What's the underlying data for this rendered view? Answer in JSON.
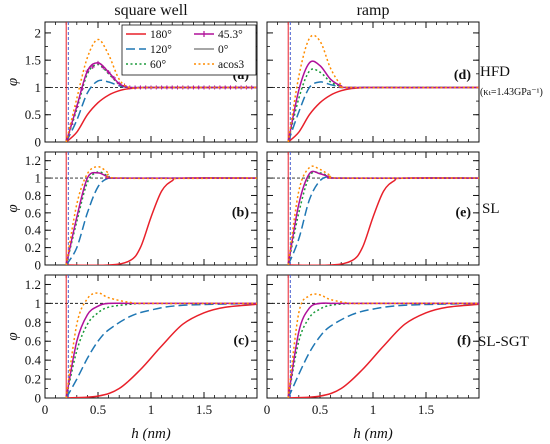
{
  "chart_data": {
    "type": "line",
    "column_headers": [
      "square well",
      "ramp"
    ],
    "row_labels": [
      {
        "label": "HFD",
        "sublabel": "(κₜ=1.43GPa⁻¹)"
      },
      {
        "label": "SL",
        "sublabel": ""
      },
      {
        "label": "SL-SGT",
        "sublabel": ""
      }
    ],
    "panel_labels": [
      "(a)",
      "(b)",
      "(c)",
      "(d)",
      "(e)",
      "(f)"
    ],
    "xlabel": "h (nm)",
    "ylabel": "φ",
    "xlim": [
      0,
      2
    ],
    "x_ticks": [
      0,
      0.5,
      1,
      1.5
    ],
    "row_ylims": [
      [
        0,
        2.2
      ],
      [
        0,
        1.3
      ],
      [
        0,
        1.3
      ]
    ],
    "row_yticks": [
      [
        0,
        0.5,
        1,
        1.5,
        2
      ],
      [
        0,
        0.2,
        0.4,
        0.6,
        0.8,
        1,
        1.2
      ],
      [
        0,
        0.2,
        0.4,
        0.6,
        0.8,
        1,
        1.2
      ]
    ],
    "reference_lines": {
      "y_dashed": 1,
      "x_vertical_red": 0.2,
      "x_vertical_blue": 0.22
    },
    "legend_position": "top-right of panel (a)",
    "series": [
      {
        "name": "180°",
        "color": "#e8202a",
        "dash": "solid"
      },
      {
        "name": "120°",
        "color": "#1f77b4",
        "dash": "longdash"
      },
      {
        "name": "60°",
        "color": "#1a9a3a",
        "dash": "dotted"
      },
      {
        "name": "45.3°",
        "color": "#b0109a",
        "dash": "solid-marker"
      },
      {
        "name": "0°",
        "color": "#888888",
        "dash": "solid"
      },
      {
        "name": "acos3",
        "color": "#ff8c00",
        "dash": "dotted"
      }
    ],
    "panels": [
      {
        "id": "a",
        "row": 0,
        "col": 0,
        "curves": [
          {
            "series": "180°",
            "x": [
              0.2,
              0.3,
              0.4,
              0.5,
              0.6,
              0.7,
              0.8,
              0.9,
              1.0,
              1.5,
              2.0
            ],
            "y": [
              0,
              0.18,
              0.5,
              0.72,
              0.86,
              0.94,
              0.98,
              0.995,
              1,
              1,
              1
            ]
          },
          {
            "series": "120°",
            "x": [
              0.2,
              0.3,
              0.4,
              0.5,
              0.6,
              0.7,
              0.8,
              1.0,
              2.0
            ],
            "y": [
              0,
              0.4,
              0.9,
              1.12,
              1.1,
              1.03,
              1.0,
              1,
              1
            ]
          },
          {
            "series": "60°",
            "x": [
              0.2,
              0.3,
              0.4,
              0.5,
              0.6,
              0.7,
              0.8,
              1.0,
              2.0
            ],
            "y": [
              0,
              0.6,
              1.25,
              1.42,
              1.25,
              1.06,
              1.0,
              1,
              1
            ]
          },
          {
            "series": "45.3°",
            "x": [
              0.2,
              0.3,
              0.4,
              0.5,
              0.6,
              0.7,
              0.8,
              1.0,
              2.0
            ],
            "y": [
              0,
              0.65,
              1.3,
              1.45,
              1.28,
              1.07,
              1.0,
              1,
              1
            ]
          },
          {
            "series": "acos3",
            "x": [
              0.2,
              0.3,
              0.4,
              0.5,
              0.6,
              0.7,
              0.8,
              1.0,
              2.0
            ],
            "y": [
              0,
              0.8,
              1.55,
              1.88,
              1.6,
              1.15,
              1.0,
              1,
              1
            ]
          }
        ]
      },
      {
        "id": "b",
        "row": 1,
        "col": 0,
        "curves": [
          {
            "series": "180°",
            "x": [
              0.2,
              0.6,
              0.8,
              0.9,
              1.0,
              1.1,
              1.2,
              1.3,
              2.0
            ],
            "y": [
              0,
              0,
              0.05,
              0.2,
              0.55,
              0.85,
              0.97,
              1,
              1
            ]
          },
          {
            "series": "120°",
            "x": [
              0.2,
              0.3,
              0.4,
              0.5,
              0.6,
              0.7,
              2.0
            ],
            "y": [
              0,
              0.2,
              0.6,
              0.9,
              1.0,
              1.0,
              1
            ]
          },
          {
            "series": "60°",
            "x": [
              0.2,
              0.3,
              0.4,
              0.5,
              0.6,
              0.7,
              2.0
            ],
            "y": [
              0,
              0.5,
              0.95,
              1.07,
              1.02,
              1.0,
              1
            ]
          },
          {
            "series": "45.3°",
            "x": [
              0.2,
              0.3,
              0.4,
              0.5,
              0.6,
              0.7,
              2.0
            ],
            "y": [
              0,
              0.55,
              1.0,
              1.06,
              1.01,
              1.0,
              1
            ]
          },
          {
            "series": "acos3",
            "x": [
              0.2,
              0.3,
              0.4,
              0.5,
              0.6,
              0.7,
              2.0
            ],
            "y": [
              0,
              0.7,
              1.05,
              1.13,
              1.06,
              1.0,
              1
            ]
          }
        ]
      },
      {
        "id": "c",
        "row": 2,
        "col": 0,
        "curves": [
          {
            "series": "180°",
            "x": [
              0.2,
              0.5,
              0.7,
              0.9,
              1.1,
              1.3,
              1.5,
              1.7,
              2.0
            ],
            "y": [
              0,
              0.02,
              0.1,
              0.3,
              0.55,
              0.78,
              0.9,
              0.96,
              0.99
            ]
          },
          {
            "series": "120°",
            "x": [
              0.2,
              0.3,
              0.4,
              0.5,
              0.6,
              0.8,
              1.0,
              1.3,
              2.0
            ],
            "y": [
              0,
              0.2,
              0.42,
              0.6,
              0.72,
              0.86,
              0.93,
              0.98,
              1
            ]
          },
          {
            "series": "60°",
            "x": [
              0.2,
              0.3,
              0.4,
              0.5,
              0.6,
              0.8,
              1.0,
              2.0
            ],
            "y": [
              0,
              0.5,
              0.78,
              0.9,
              0.96,
              0.99,
              1,
              1
            ]
          },
          {
            "series": "45.3°",
            "x": [
              0.2,
              0.3,
              0.4,
              0.5,
              0.6,
              0.8,
              1.0,
              2.0
            ],
            "y": [
              0,
              0.6,
              0.88,
              0.97,
              1.0,
              1.0,
              1,
              1
            ]
          },
          {
            "series": "acos3",
            "x": [
              0.2,
              0.3,
              0.4,
              0.5,
              0.6,
              0.8,
              1.0,
              2.0
            ],
            "y": [
              0,
              0.78,
              1.05,
              1.11,
              1.06,
              1.01,
              1,
              1
            ]
          }
        ]
      },
      {
        "id": "d",
        "row": 0,
        "col": 1,
        "curves": [
          {
            "series": "180°",
            "x": [
              0.2,
              0.3,
              0.4,
              0.5,
              0.6,
              0.7,
              0.8,
              0.9,
              1.0,
              2.0
            ],
            "y": [
              0,
              0.18,
              0.5,
              0.72,
              0.86,
              0.94,
              0.98,
              0.995,
              1,
              1
            ]
          },
          {
            "series": "120°",
            "x": [
              0.2,
              0.3,
              0.4,
              0.5,
              0.6,
              0.7,
              0.8,
              2.0
            ],
            "y": [
              0,
              0.55,
              1.0,
              1.1,
              1.05,
              1.01,
              1,
              1
            ]
          },
          {
            "series": "60°",
            "x": [
              0.2,
              0.3,
              0.4,
              0.5,
              0.6,
              0.7,
              0.8,
              2.0
            ],
            "y": [
              0,
              0.8,
              1.3,
              1.28,
              1.1,
              1.02,
              1,
              1
            ]
          },
          {
            "series": "45.3°",
            "x": [
              0.2,
              0.3,
              0.4,
              0.5,
              0.6,
              0.7,
              0.8,
              2.0
            ],
            "y": [
              0,
              0.95,
              1.45,
              1.4,
              1.15,
              1.03,
              1,
              1
            ]
          },
          {
            "series": "acos3",
            "x": [
              0.2,
              0.3,
              0.4,
              0.5,
              0.6,
              0.7,
              0.8,
              2.0
            ],
            "y": [
              0,
              1.2,
              1.9,
              1.85,
              1.35,
              1.05,
              1,
              1
            ]
          }
        ]
      },
      {
        "id": "e",
        "row": 1,
        "col": 1,
        "curves": [
          {
            "series": "180°",
            "x": [
              0.2,
              0.6,
              0.8,
              0.9,
              1.0,
              1.1,
              1.2,
              1.3,
              2.0
            ],
            "y": [
              0,
              0,
              0.05,
              0.2,
              0.55,
              0.85,
              0.97,
              1,
              1
            ]
          },
          {
            "series": "120°",
            "x": [
              0.2,
              0.3,
              0.4,
              0.5,
              0.6,
              0.7,
              2.0
            ],
            "y": [
              0,
              0.3,
              0.75,
              0.97,
              1.02,
              1.0,
              1
            ]
          },
          {
            "series": "60°",
            "x": [
              0.2,
              0.3,
              0.4,
              0.5,
              0.6,
              0.7,
              2.0
            ],
            "y": [
              0,
              0.6,
              1.02,
              1.06,
              1.01,
              1.0,
              1
            ]
          },
          {
            "series": "45.3°",
            "x": [
              0.2,
              0.3,
              0.4,
              0.5,
              0.6,
              0.7,
              2.0
            ],
            "y": [
              0,
              0.7,
              1.05,
              1.05,
              1.01,
              1.0,
              1
            ]
          },
          {
            "series": "acos3",
            "x": [
              0.2,
              0.3,
              0.4,
              0.5,
              0.6,
              0.7,
              2.0
            ],
            "y": [
              0,
              0.85,
              1.12,
              1.1,
              1.03,
              1.0,
              1
            ]
          }
        ]
      },
      {
        "id": "f",
        "row": 2,
        "col": 1,
        "curves": [
          {
            "series": "180°",
            "x": [
              0.2,
              0.5,
              0.7,
              0.9,
              1.1,
              1.3,
              1.5,
              1.7,
              2.0
            ],
            "y": [
              0,
              0.02,
              0.1,
              0.3,
              0.55,
              0.78,
              0.9,
              0.96,
              0.99
            ]
          },
          {
            "series": "120°",
            "x": [
              0.2,
              0.3,
              0.4,
              0.5,
              0.6,
              0.8,
              1.0,
              1.3,
              2.0
            ],
            "y": [
              0,
              0.25,
              0.48,
              0.65,
              0.76,
              0.88,
              0.94,
              0.98,
              1
            ]
          },
          {
            "series": "60°",
            "x": [
              0.2,
              0.3,
              0.4,
              0.5,
              0.6,
              0.8,
              1.0,
              2.0
            ],
            "y": [
              0,
              0.6,
              0.85,
              0.94,
              0.98,
              1.0,
              1,
              1
            ]
          },
          {
            "series": "45.3°",
            "x": [
              0.2,
              0.3,
              0.4,
              0.5,
              0.6,
              0.8,
              1.0,
              2.0
            ],
            "y": [
              0,
              0.7,
              0.95,
              1.0,
              1.0,
              1.0,
              1,
              1
            ]
          },
          {
            "series": "acos3",
            "x": [
              0.2,
              0.3,
              0.4,
              0.5,
              0.6,
              0.8,
              1.0,
              2.0
            ],
            "y": [
              0,
              0.9,
              1.08,
              1.09,
              1.04,
              1.0,
              1,
              1
            ]
          }
        ]
      }
    ]
  }
}
